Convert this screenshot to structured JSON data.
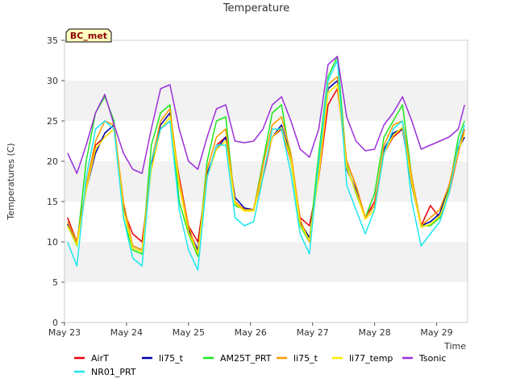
{
  "chart_data": {
    "type": "line",
    "title": "Temperature",
    "xlabel": "Time",
    "ylabel": "Temperatures (C)",
    "site_label": "BC_met",
    "xlim": [
      0,
      6.5
    ],
    "ylim": [
      0,
      35
    ],
    "yticks": [
      0,
      5,
      10,
      15,
      20,
      25,
      30,
      35
    ],
    "xticks": [
      {
        "pos": 0,
        "label": "May 23"
      },
      {
        "pos": 1,
        "label": "May 24"
      },
      {
        "pos": 2,
        "label": "May 25"
      },
      {
        "pos": 3,
        "label": "May 26"
      },
      {
        "pos": 4,
        "label": "May 27"
      },
      {
        "pos": 5,
        "label": "May 28"
      },
      {
        "pos": 6,
        "label": "May 29"
      }
    ],
    "band_color": "#f2f2f2",
    "x": [
      0.05,
      0.2,
      0.35,
      0.5,
      0.65,
      0.8,
      0.95,
      1.1,
      1.25,
      1.4,
      1.55,
      1.7,
      1.85,
      2.0,
      2.15,
      2.3,
      2.45,
      2.6,
      2.75,
      2.9,
      3.05,
      3.2,
      3.35,
      3.5,
      3.65,
      3.8,
      3.95,
      4.1,
      4.25,
      4.4,
      4.55,
      4.7,
      4.85,
      5.0,
      5.15,
      5.3,
      5.45,
      5.6,
      5.75,
      5.9,
      6.05,
      6.2,
      6.35,
      6.45
    ],
    "series": [
      {
        "name": "AirT",
        "color": "#e8000b",
        "values": [
          13.0,
          10.0,
          17.0,
          22.0,
          23.0,
          24.0,
          14.0,
          11.0,
          10.0,
          19.0,
          24.0,
          25.0,
          18.0,
          12.0,
          10.0,
          18.0,
          22.0,
          23.0,
          15.0,
          14.0,
          14.0,
          18.0,
          23.0,
          24.0,
          20.0,
          13.0,
          12.0,
          18.0,
          27.0,
          29.0,
          20.0,
          17.0,
          13.0,
          15.0,
          21.0,
          23.0,
          24.0,
          18.0,
          12.0,
          14.5,
          13.0,
          16.0,
          21.0,
          24.0
        ]
      },
      {
        "name": "li75_t",
        "color": "#0000aa",
        "values": [
          12.2,
          9.8,
          16.5,
          21.0,
          23.5,
          24.5,
          14.5,
          9.5,
          9.0,
          19.5,
          24.5,
          26.0,
          17.0,
          11.5,
          9.0,
          18.5,
          21.5,
          23.0,
          15.5,
          14.2,
          14.0,
          18.5,
          23.0,
          24.5,
          20.5,
          12.5,
          10.5,
          18.5,
          29.0,
          30.0,
          19.0,
          16.5,
          13.0,
          14.5,
          21.5,
          23.5,
          24.0,
          17.0,
          12.0,
          12.5,
          13.5,
          17.0,
          21.5,
          23.0
        ]
      },
      {
        "name": "AM25T_PRT",
        "color": "#1ee61e",
        "values": [
          12.0,
          9.5,
          20.0,
          26.0,
          28.0,
          25.0,
          13.0,
          9.0,
          8.5,
          22.0,
          26.0,
          27.0,
          15.0,
          11.0,
          8.2,
          20.0,
          25.0,
          25.5,
          14.5,
          14.0,
          14.0,
          20.0,
          26.0,
          27.0,
          20.0,
          12.0,
          10.0,
          21.0,
          30.5,
          33.0,
          19.5,
          16.0,
          13.0,
          16.0,
          23.0,
          25.0,
          27.0,
          18.0,
          12.0,
          12.0,
          13.0,
          16.5,
          23.0,
          25.0
        ]
      },
      {
        "name": "li75_t",
        "color": "#ff9900",
        "values": [
          12.5,
          10.0,
          17.0,
          22.5,
          25.0,
          24.5,
          15.0,
          9.5,
          9.0,
          20.0,
          25.0,
          26.5,
          17.5,
          12.0,
          8.5,
          19.0,
          23.0,
          24.0,
          15.0,
          14.0,
          14.0,
          19.5,
          24.5,
          25.5,
          21.0,
          12.8,
          10.0,
          19.0,
          29.5,
          30.5,
          20.0,
          17.0,
          13.0,
          14.5,
          22.0,
          24.5,
          25.0,
          18.0,
          12.0,
          13.0,
          14.0,
          17.0,
          22.0,
          24.0
        ]
      },
      {
        "name": "li77_temp",
        "color": "#ffeb00",
        "values": [
          12.0,
          9.6,
          16.5,
          21.5,
          23.0,
          24.0,
          14.0,
          9.2,
          8.8,
          19.0,
          24.0,
          25.5,
          17.0,
          11.2,
          8.6,
          18.0,
          21.5,
          22.5,
          14.8,
          13.8,
          13.8,
          18.5,
          23.0,
          24.2,
          20.2,
          12.2,
          10.2,
          18.2,
          28.5,
          29.5,
          19.2,
          16.2,
          12.8,
          14.0,
          21.0,
          23.2,
          24.2,
          17.2,
          11.8,
          12.2,
          13.2,
          16.2,
          21.2,
          23.5
        ]
      },
      {
        "name": "NR01_PRT",
        "color": "#1ee6f0",
        "values": [
          10.0,
          7.0,
          18.0,
          24.0,
          25.0,
          24.0,
          13.0,
          8.0,
          7.0,
          20.0,
          24.0,
          25.0,
          14.0,
          9.0,
          6.5,
          18.0,
          22.0,
          22.0,
          13.0,
          12.0,
          12.5,
          18.0,
          24.0,
          24.0,
          18.5,
          11.0,
          8.5,
          20.0,
          30.0,
          32.5,
          17.0,
          14.0,
          11.0,
          14.0,
          21.0,
          24.0,
          25.0,
          15.0,
          9.5,
          11.0,
          12.5,
          16.0,
          22.0,
          24.5
        ]
      },
      {
        "name": "Tsonic",
        "color": "#9b30d9",
        "values": [
          21.0,
          18.5,
          22.0,
          26.0,
          28.3,
          24.5,
          21.0,
          19.0,
          18.5,
          24.0,
          29.0,
          29.5,
          24.0,
          20.0,
          19.0,
          23.0,
          26.5,
          27.0,
          22.5,
          22.3,
          22.5,
          24.0,
          27.0,
          28.0,
          25.0,
          21.5,
          20.5,
          24.0,
          32.0,
          33.0,
          25.5,
          22.5,
          21.3,
          21.5,
          24.5,
          26.0,
          28.0,
          25.0,
          21.5,
          22.0,
          22.5,
          23.0,
          24.0,
          27.0
        ]
      }
    ],
    "legend": [
      {
        "label": "AirT",
        "color": "#e8000b"
      },
      {
        "label": "li75_t",
        "color": "#0000aa"
      },
      {
        "label": "AM25T_PRT",
        "color": "#1ee61e"
      },
      {
        "label": "li75_t",
        "color": "#ff9900"
      },
      {
        "label": "li77_temp",
        "color": "#ffeb00"
      },
      {
        "label": "Tsonic",
        "color": "#9b30d9"
      },
      {
        "label": "NR01_PRT",
        "color": "#1ee6f0"
      }
    ],
    "legend_placement": "bottom"
  }
}
